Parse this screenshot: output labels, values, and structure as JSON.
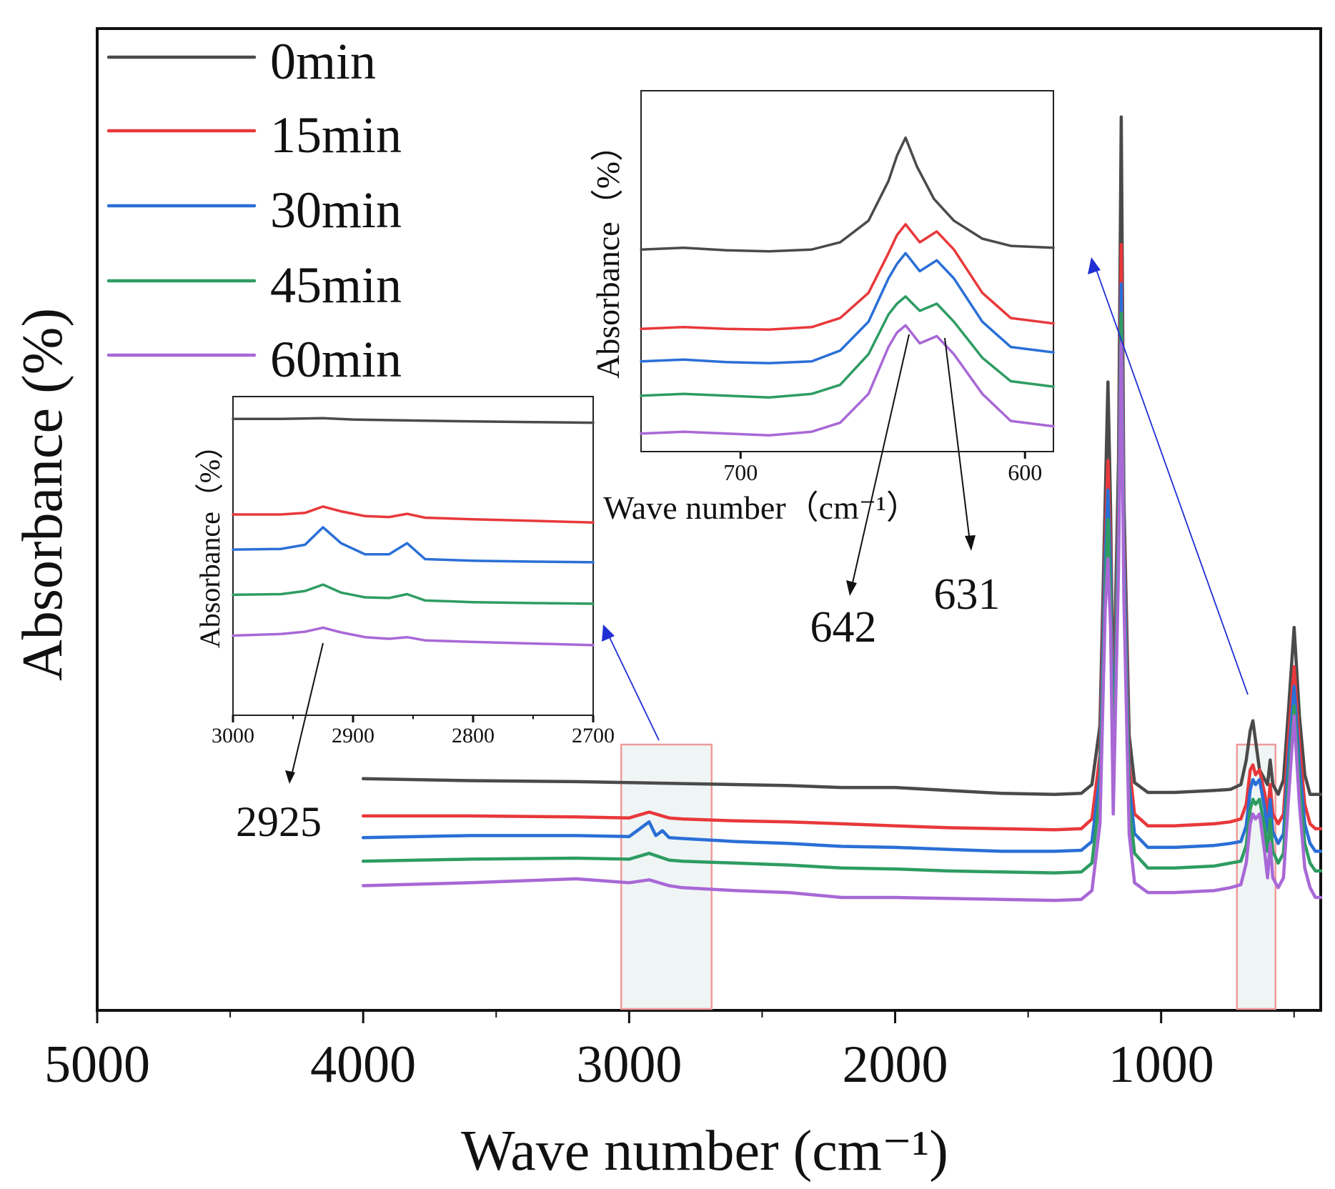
{
  "chart_data": [
    {
      "type": "line",
      "role": "main",
      "title": "",
      "xlabel": "Wave number (cm⁻¹)",
      "ylabel": "Absorbance (%)",
      "xlim": [
        5000,
        400
      ],
      "x_reversed": true,
      "ylim": [
        0,
        10
      ],
      "yticks_shown": false,
      "xticks": [
        5000,
        4000,
        3000,
        2000,
        1000
      ],
      "xtick_labels": [
        "5000",
        "4000",
        "3000",
        "2000",
        "1000"
      ],
      "legend": {
        "placement": "top-left",
        "entries": [
          "0min",
          "15min",
          "30min",
          "45min",
          "60min"
        ]
      },
      "series": [
        {
          "name": "0min",
          "color": "#4a4a4a",
          "x": [
            4000,
            3600,
            3200,
            3000,
            2800,
            2600,
            2400,
            2200,
            2000,
            1800,
            1600,
            1400,
            1300,
            1260,
            1230,
            1210,
            1200,
            1190,
            1180,
            1160,
            1150,
            1140,
            1120,
            1100,
            1050,
            950,
            800,
            740,
            700,
            680,
            665,
            655,
            645,
            630,
            610,
            600,
            590,
            580,
            560,
            540,
            520,
            500,
            480,
            460,
            440,
            420,
            400
          ],
          "y": [
            2.36,
            2.34,
            2.33,
            2.32,
            2.31,
            2.3,
            2.29,
            2.27,
            2.27,
            2.24,
            2.21,
            2.2,
            2.21,
            2.3,
            2.9,
            5.2,
            6.4,
            5.1,
            3.0,
            5.6,
            9.1,
            5.2,
            2.8,
            2.32,
            2.22,
            2.22,
            2.24,
            2.25,
            2.3,
            2.55,
            2.85,
            2.95,
            2.75,
            2.45,
            2.35,
            2.3,
            2.55,
            2.3,
            2.2,
            2.35,
            3.1,
            3.9,
            3.0,
            2.4,
            2.2,
            2.2,
            2.2
          ]
        },
        {
          "name": "15min",
          "color": "#e8383b",
          "x": [
            4000,
            3600,
            3200,
            3000,
            2925,
            2850,
            2800,
            2600,
            2400,
            2200,
            2000,
            1800,
            1600,
            1400,
            1300,
            1260,
            1230,
            1210,
            1200,
            1190,
            1180,
            1160,
            1150,
            1140,
            1120,
            1100,
            1050,
            950,
            800,
            740,
            700,
            680,
            665,
            655,
            645,
            630,
            610,
            600,
            590,
            580,
            560,
            540,
            520,
            500,
            480,
            460,
            440,
            420,
            400
          ],
          "y": [
            1.98,
            1.98,
            1.97,
            1.96,
            2.02,
            1.96,
            1.95,
            1.93,
            1.92,
            1.9,
            1.88,
            1.86,
            1.85,
            1.84,
            1.85,
            1.95,
            2.6,
            4.8,
            5.6,
            4.7,
            2.7,
            5.2,
            7.8,
            4.9,
            2.5,
            2.0,
            1.88,
            1.88,
            1.9,
            1.92,
            1.95,
            2.1,
            2.45,
            2.5,
            2.4,
            2.45,
            2.2,
            2.0,
            2.3,
            2.0,
            1.9,
            2.0,
            2.8,
            3.5,
            2.7,
            2.1,
            1.9,
            1.85,
            1.85
          ]
        },
        {
          "name": "30min",
          "color": "#2a6fd6",
          "x": [
            4000,
            3600,
            3200,
            3000,
            2925,
            2900,
            2875,
            2850,
            2800,
            2600,
            2400,
            2200,
            2000,
            1800,
            1600,
            1400,
            1300,
            1260,
            1230,
            1210,
            1200,
            1190,
            1180,
            1160,
            1150,
            1140,
            1120,
            1100,
            1050,
            950,
            800,
            740,
            700,
            680,
            665,
            655,
            645,
            630,
            610,
            600,
            590,
            580,
            560,
            540,
            520,
            500,
            480,
            460,
            440,
            420,
            400
          ],
          "y": [
            1.76,
            1.78,
            1.78,
            1.77,
            1.92,
            1.78,
            1.83,
            1.76,
            1.75,
            1.72,
            1.7,
            1.67,
            1.66,
            1.64,
            1.62,
            1.62,
            1.63,
            1.72,
            2.4,
            4.6,
            5.3,
            4.5,
            2.5,
            5.0,
            7.4,
            4.7,
            2.3,
            1.8,
            1.66,
            1.66,
            1.68,
            1.7,
            1.72,
            1.88,
            2.25,
            2.35,
            2.3,
            2.35,
            2.05,
            1.82,
            2.15,
            1.82,
            1.7,
            1.8,
            2.6,
            3.3,
            2.5,
            1.9,
            1.7,
            1.62,
            1.62
          ]
        },
        {
          "name": "45min",
          "color": "#2e9c62",
          "x": [
            4000,
            3600,
            3200,
            3000,
            2925,
            2850,
            2800,
            2600,
            2400,
            2200,
            2000,
            1800,
            1600,
            1400,
            1300,
            1260,
            1230,
            1210,
            1200,
            1190,
            1180,
            1160,
            1150,
            1140,
            1120,
            1100,
            1050,
            950,
            800,
            740,
            700,
            680,
            665,
            655,
            645,
            630,
            610,
            600,
            590,
            580,
            560,
            540,
            520,
            500,
            480,
            460,
            440,
            420,
            400
          ],
          "y": [
            1.52,
            1.54,
            1.55,
            1.54,
            1.6,
            1.53,
            1.52,
            1.5,
            1.48,
            1.45,
            1.44,
            1.42,
            1.41,
            1.4,
            1.41,
            1.5,
            2.2,
            4.3,
            5.0,
            4.2,
            2.3,
            4.8,
            7.1,
            4.4,
            2.1,
            1.6,
            1.45,
            1.45,
            1.47,
            1.5,
            1.52,
            1.68,
            2.05,
            2.15,
            2.1,
            2.15,
            1.85,
            1.62,
            1.95,
            1.62,
            1.5,
            1.6,
            2.4,
            3.1,
            2.3,
            1.7,
            1.5,
            1.42,
            1.42
          ]
        },
        {
          "name": "60min",
          "color": "#a868d6",
          "x": [
            4000,
            3600,
            3200,
            3000,
            2925,
            2850,
            2800,
            2600,
            2400,
            2200,
            2000,
            1800,
            1600,
            1400,
            1300,
            1260,
            1230,
            1210,
            1200,
            1190,
            1180,
            1160,
            1150,
            1140,
            1120,
            1100,
            1050,
            950,
            800,
            740,
            700,
            680,
            665,
            655,
            645,
            630,
            610,
            600,
            590,
            580,
            560,
            540,
            520,
            500,
            480,
            460,
            440,
            420,
            400
          ],
          "y": [
            1.27,
            1.3,
            1.34,
            1.3,
            1.33,
            1.27,
            1.25,
            1.22,
            1.2,
            1.15,
            1.15,
            1.14,
            1.13,
            1.12,
            1.13,
            1.22,
            1.9,
            4.1,
            4.6,
            3.9,
            2.0,
            4.5,
            6.8,
            4.2,
            1.8,
            1.3,
            1.2,
            1.2,
            1.22,
            1.25,
            1.28,
            1.5,
            1.9,
            2.0,
            1.95,
            2.0,
            1.6,
            1.35,
            1.7,
            1.35,
            1.25,
            1.35,
            2.2,
            3.0,
            2.1,
            1.45,
            1.25,
            1.15,
            1.15
          ]
        }
      ],
      "highlight_regions": [
        [
          3030,
          2690
        ],
        [
          715,
          570
        ]
      ]
    },
    {
      "type": "line",
      "role": "inset",
      "title": "",
      "xlabel": "",
      "ylabel": "Absorbance（%）",
      "xlim": [
        3000,
        2700
      ],
      "x_reversed": true,
      "ylim": [
        0,
        10
      ],
      "xticks": [
        3000,
        2900,
        2800,
        2700
      ],
      "xtick_labels": [
        "3000",
        "2900",
        "2800",
        "2700"
      ],
      "annotations": [
        {
          "text": "2925",
          "x": 2925
        }
      ],
      "series": [
        {
          "name": "0min",
          "color": "#4a4a4a",
          "x": [
            3000,
            2960,
            2925,
            2900,
            2850,
            2800,
            2750,
            2700
          ],
          "y": [
            9.3,
            9.3,
            9.32,
            9.28,
            9.25,
            9.22,
            9.2,
            9.18
          ]
        },
        {
          "name": "15min",
          "color": "#e8383b",
          "x": [
            3000,
            2960,
            2940,
            2925,
            2910,
            2890,
            2870,
            2855,
            2840,
            2800,
            2750,
            2700
          ],
          "y": [
            6.3,
            6.3,
            6.35,
            6.55,
            6.4,
            6.25,
            6.22,
            6.32,
            6.2,
            6.15,
            6.1,
            6.05
          ]
        },
        {
          "name": "30min",
          "color": "#2a6fd6",
          "x": [
            3000,
            2960,
            2940,
            2925,
            2910,
            2890,
            2870,
            2855,
            2840,
            2800,
            2750,
            2700
          ],
          "y": [
            5.2,
            5.22,
            5.35,
            5.9,
            5.4,
            5.05,
            5.05,
            5.4,
            4.9,
            4.85,
            4.82,
            4.8
          ]
        },
        {
          "name": "45min",
          "color": "#2e9c62",
          "x": [
            3000,
            2960,
            2940,
            2925,
            2910,
            2890,
            2870,
            2855,
            2840,
            2800,
            2750,
            2700
          ],
          "y": [
            3.78,
            3.8,
            3.9,
            4.1,
            3.85,
            3.7,
            3.68,
            3.8,
            3.6,
            3.55,
            3.52,
            3.5
          ]
        },
        {
          "name": "60min",
          "color": "#a868d6",
          "x": [
            3000,
            2960,
            2940,
            2925,
            2910,
            2890,
            2870,
            2855,
            2840,
            2800,
            2750,
            2700
          ],
          "y": [
            2.5,
            2.55,
            2.62,
            2.75,
            2.6,
            2.45,
            2.4,
            2.45,
            2.35,
            2.3,
            2.25,
            2.2
          ]
        }
      ]
    },
    {
      "type": "line",
      "role": "inset",
      "title": "",
      "xlabel": "Wave number（cm⁻¹）",
      "ylabel": "Absorbance（%）",
      "xlim": [
        735,
        590
      ],
      "x_reversed": true,
      "ylim": [
        0,
        10
      ],
      "xticks": [
        700,
        600
      ],
      "xtick_labels": [
        "700",
        "600"
      ],
      "annotations": [
        {
          "text": "642",
          "x": 642
        },
        {
          "text": "631",
          "x": 631
        }
      ],
      "series": [
        {
          "name": "0min",
          "color": "#4a4a4a",
          "x": [
            735,
            720,
            705,
            690,
            675,
            665,
            655,
            648,
            645,
            642,
            638,
            632,
            625,
            615,
            605,
            590
          ],
          "y": [
            5.6,
            5.65,
            5.58,
            5.55,
            5.6,
            5.8,
            6.4,
            7.5,
            8.2,
            8.7,
            7.9,
            7.0,
            6.4,
            5.9,
            5.7,
            5.65
          ]
        },
        {
          "name": "15min",
          "color": "#e8383b",
          "x": [
            735,
            720,
            705,
            690,
            675,
            665,
            655,
            648,
            645,
            642,
            637,
            631,
            625,
            615,
            605,
            590
          ],
          "y": [
            3.4,
            3.45,
            3.4,
            3.38,
            3.45,
            3.7,
            4.4,
            5.5,
            6.0,
            6.3,
            5.8,
            6.1,
            5.6,
            4.4,
            3.7,
            3.55
          ]
        },
        {
          "name": "30min",
          "color": "#2a6fd6",
          "x": [
            735,
            720,
            705,
            690,
            675,
            665,
            655,
            648,
            645,
            642,
            637,
            631,
            625,
            615,
            605,
            590
          ],
          "y": [
            2.5,
            2.55,
            2.48,
            2.45,
            2.5,
            2.8,
            3.6,
            4.8,
            5.2,
            5.5,
            5.0,
            5.3,
            4.8,
            3.6,
            2.9,
            2.75
          ]
        },
        {
          "name": "45min",
          "color": "#2e9c62",
          "x": [
            735,
            720,
            705,
            690,
            675,
            665,
            655,
            648,
            645,
            642,
            637,
            631,
            625,
            615,
            605,
            590
          ],
          "y": [
            1.55,
            1.6,
            1.55,
            1.5,
            1.6,
            1.85,
            2.7,
            3.8,
            4.1,
            4.3,
            3.9,
            4.1,
            3.6,
            2.6,
            1.95,
            1.8
          ]
        },
        {
          "name": "60min",
          "color": "#a868d6",
          "x": [
            735,
            720,
            705,
            690,
            675,
            665,
            655,
            648,
            645,
            642,
            637,
            631,
            625,
            615,
            605,
            590
          ],
          "y": [
            0.5,
            0.55,
            0.5,
            0.45,
            0.55,
            0.8,
            1.6,
            2.9,
            3.3,
            3.5,
            3.0,
            3.2,
            2.7,
            1.6,
            0.85,
            0.7
          ]
        }
      ]
    }
  ]
}
